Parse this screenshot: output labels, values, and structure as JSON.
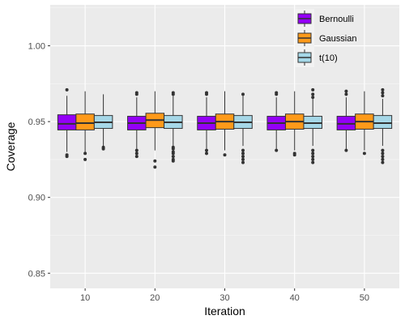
{
  "chart_data": {
    "type": "box",
    "xlabel": "Iteration",
    "ylabel": "Coverage",
    "categories": [
      "10",
      "20",
      "30",
      "40",
      "50"
    ],
    "ylim": [
      0.84,
      1.027
    ],
    "yticks": [
      0.85,
      0.9,
      0.95,
      1.0
    ],
    "ytick_labels": [
      "0.85",
      "0.90",
      "0.95",
      "1.00"
    ],
    "grid": true,
    "legend_position": "top-right",
    "series": [
      {
        "name": "Bernoulli",
        "color": "#9400F7",
        "boxes": [
          {
            "min": 0.93,
            "q1": 0.9445,
            "median": 0.9485,
            "q3": 0.9545,
            "max": 0.967,
            "outliers": [
              0.971,
              0.928,
              0.927
            ]
          },
          {
            "min": 0.932,
            "q1": 0.9445,
            "median": 0.949,
            "q3": 0.9535,
            "max": 0.966,
            "outliers": [
              0.968,
              0.969,
              0.931,
              0.929,
              0.927
            ]
          },
          {
            "min": 0.932,
            "q1": 0.9445,
            "median": 0.949,
            "q3": 0.9535,
            "max": 0.966,
            "outliers": [
              0.968,
              0.969,
              0.931,
              0.929
            ]
          },
          {
            "min": 0.932,
            "q1": 0.9445,
            "median": 0.949,
            "q3": 0.9535,
            "max": 0.966,
            "outliers": [
              0.968,
              0.969,
              0.931
            ]
          },
          {
            "min": 0.932,
            "q1": 0.9445,
            "median": 0.9485,
            "q3": 0.9535,
            "max": 0.966,
            "outliers": [
              0.968,
              0.97,
              0.931
            ]
          }
        ]
      },
      {
        "name": "Gaussian",
        "color": "#FF9A1A",
        "boxes": [
          {
            "min": 0.93,
            "q1": 0.9445,
            "median": 0.949,
            "q3": 0.955,
            "max": 0.97,
            "outliers": [
              0.929,
              0.925
            ]
          },
          {
            "min": 0.931,
            "q1": 0.946,
            "median": 0.951,
            "q3": 0.9555,
            "max": 0.97,
            "outliers": [
              0.924,
              0.92
            ]
          },
          {
            "min": 0.931,
            "q1": 0.945,
            "median": 0.95,
            "q3": 0.955,
            "max": 0.97,
            "outliers": [
              0.928
            ]
          },
          {
            "min": 0.931,
            "q1": 0.945,
            "median": 0.95,
            "q3": 0.955,
            "max": 0.97,
            "outliers": [
              0.929,
              0.928
            ]
          },
          {
            "min": 0.931,
            "q1": 0.945,
            "median": 0.95,
            "q3": 0.955,
            "max": 0.97,
            "outliers": [
              0.929
            ]
          }
        ]
      },
      {
        "name": "t(10)",
        "color": "#A6D8E8",
        "boxes": [
          {
            "min": 0.933,
            "q1": 0.9455,
            "median": 0.9495,
            "q3": 0.954,
            "max": 0.968,
            "outliers": [
              0.933,
              0.932
            ]
          },
          {
            "min": 0.934,
            "q1": 0.9455,
            "median": 0.9495,
            "q3": 0.954,
            "max": 0.967,
            "outliers": [
              0.968,
              0.969,
              0.933,
              0.932,
              0.93,
              0.929,
              0.927,
              0.925,
              0.924
            ]
          },
          {
            "min": 0.934,
            "q1": 0.9455,
            "median": 0.9495,
            "q3": 0.954,
            "max": 0.967,
            "outliers": [
              0.968,
              0.931,
              0.929,
              0.927,
              0.925,
              0.923
            ]
          },
          {
            "min": 0.934,
            "q1": 0.9455,
            "median": 0.949,
            "q3": 0.9535,
            "max": 0.965,
            "outliers": [
              0.971,
              0.968,
              0.966,
              0.931,
              0.929,
              0.927,
              0.925,
              0.923
            ]
          },
          {
            "min": 0.934,
            "q1": 0.9455,
            "median": 0.949,
            "q3": 0.954,
            "max": 0.965,
            "outliers": [
              0.971,
              0.969,
              0.967,
              0.931,
              0.929,
              0.927,
              0.925,
              0.923
            ]
          }
        ]
      }
    ]
  }
}
